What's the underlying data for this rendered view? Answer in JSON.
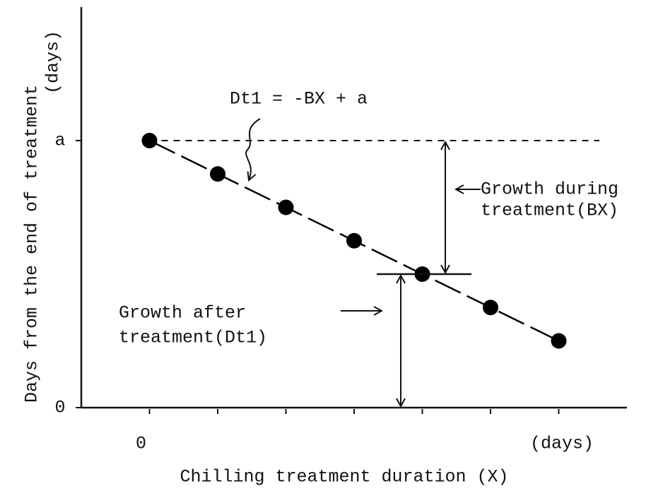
{
  "chart_data": {
    "type": "line",
    "ylabel": [
      "Days from the end of treatment",
      "(days)"
    ],
    "xlabel": "Chilling treatment duration (X)",
    "xlabel_unit": "(days)",
    "annotations": {
      "equation": "Dt1 = -BX + a",
      "growth_during": [
        "Growth during",
        "treatment(BX)"
      ],
      "growth_after": [
        "Growth after",
        "treatment(Dt1)"
      ]
    },
    "x": [
      0,
      1,
      2,
      3,
      4,
      5,
      6
    ],
    "values": [
      8,
      7,
      6,
      5,
      4,
      3,
      2
    ],
    "color": "#000000",
    "xlim": [
      -1,
      7
    ],
    "xticks": [
      {
        "value": 0,
        "label": "0"
      },
      {
        "value": 1,
        "label": null
      },
      {
        "value": 2,
        "label": null
      },
      {
        "value": 3,
        "label": null
      },
      {
        "value": 4,
        "label": null
      },
      {
        "value": 5,
        "label": null
      },
      {
        "value": 6,
        "label": null
      }
    ],
    "ylim": [
      0,
      12
    ],
    "yticks": [
      0,
      {
        "value": 8,
        "label": "a"
      }
    ]
  }
}
